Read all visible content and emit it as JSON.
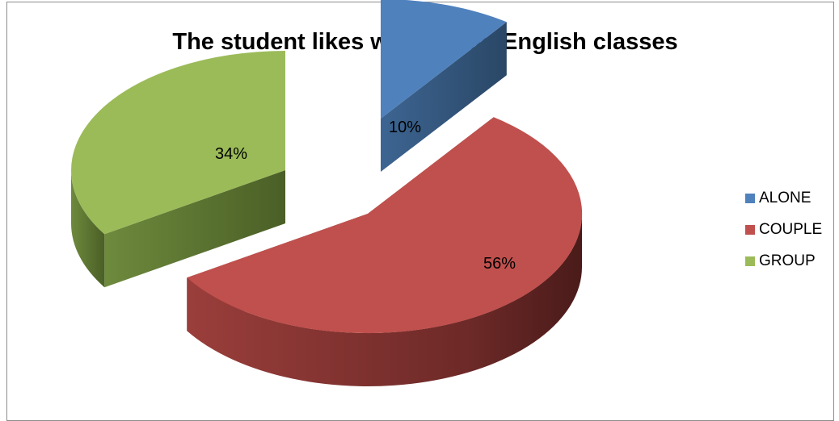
{
  "chart_data": {
    "type": "pie",
    "title": "The student likes working on English classes",
    "categories": [
      "ALONE",
      "COUPLE",
      "GROUP"
    ],
    "values": [
      10,
      56,
      34
    ],
    "value_labels": [
      "10%",
      "56%",
      "34%"
    ],
    "colors": [
      "#4f81bd",
      "#c0504d",
      "#9bbb59"
    ],
    "legend_position": "right",
    "style": "3d-exploded"
  }
}
